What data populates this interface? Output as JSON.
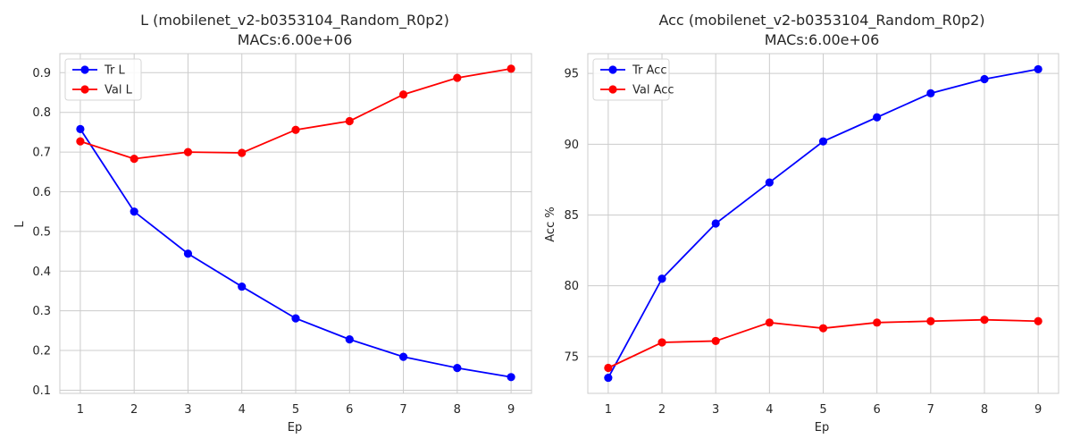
{
  "chart_data": [
    {
      "type": "line",
      "title": "L (mobilenet_v2-b0353104_Random_R0p2)",
      "subtitle": "MACs:6.00e+06",
      "xlabel": "Ep",
      "ylabel": "L",
      "x": [
        1,
        2,
        3,
        4,
        5,
        6,
        7,
        8,
        9
      ],
      "xlim": [
        0.62,
        9.38
      ],
      "ylim": [
        0.092,
        0.948
      ],
      "yticks": [
        0.1,
        0.2,
        0.3,
        0.4,
        0.5,
        0.6,
        0.7,
        0.8,
        0.9
      ],
      "ytick_labels": [
        "0.1",
        "0.2",
        "0.3",
        "0.4",
        "0.5",
        "0.6",
        "0.7",
        "0.8",
        "0.9"
      ],
      "grid": true,
      "legend_position": "top-left",
      "series": [
        {
          "name": "Tr L",
          "color": "#0000ff",
          "values": [
            0.758,
            0.55,
            0.444,
            0.361,
            0.281,
            0.228,
            0.184,
            0.156,
            0.133
          ]
        },
        {
          "name": "Val L",
          "color": "#ff0000",
          "values": [
            0.727,
            0.683,
            0.7,
            0.698,
            0.756,
            0.778,
            0.845,
            0.887,
            0.91
          ]
        }
      ]
    },
    {
      "type": "line",
      "title": "Acc (mobilenet_v2-b0353104_Random_R0p2)",
      "subtitle": "MACs:6.00e+06",
      "xlabel": "Ep",
      "ylabel": "Acc %",
      "x": [
        1,
        2,
        3,
        4,
        5,
        6,
        7,
        8,
        9
      ],
      "xlim": [
        0.62,
        9.38
      ],
      "ylim": [
        72.4,
        96.4
      ],
      "yticks": [
        75,
        80,
        85,
        90,
        95
      ],
      "ytick_labels": [
        "75",
        "80",
        "85",
        "90",
        "95"
      ],
      "grid": true,
      "legend_position": "top-left",
      "series": [
        {
          "name": "Tr Acc",
          "color": "#0000ff",
          "values": [
            73.5,
            80.5,
            84.4,
            87.3,
            90.2,
            91.9,
            93.6,
            94.6,
            95.3
          ]
        },
        {
          "name": "Val Acc",
          "color": "#ff0000",
          "values": [
            74.2,
            76.0,
            76.1,
            77.4,
            77.0,
            77.4,
            77.5,
            77.6,
            77.5
          ]
        }
      ]
    }
  ]
}
